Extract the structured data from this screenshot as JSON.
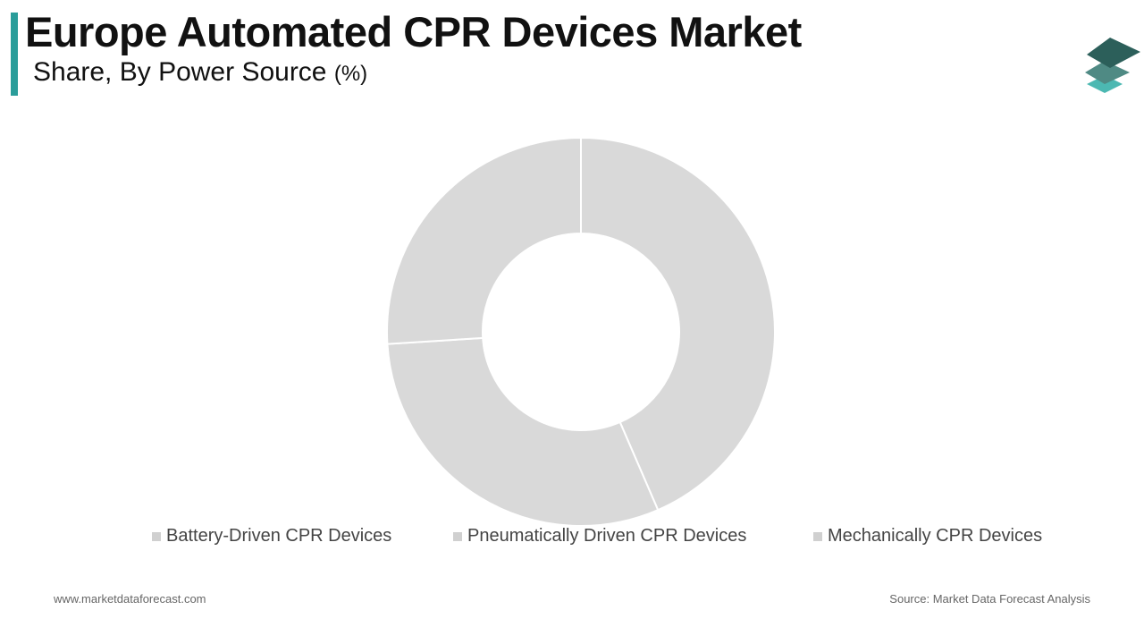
{
  "header": {
    "title": "Europe Automated CPR Devices Market",
    "subtitle": "Share, By Power Source",
    "subtitle_unit": "(%)",
    "accent_color": "#2a9d9a"
  },
  "logo": {
    "icon": "stacked-layers-logo-icon",
    "colors": [
      "#2c5f5a",
      "#4f8a84",
      "#4cb8b2"
    ]
  },
  "chart_data": {
    "type": "pie",
    "variant": "donut",
    "title": "Europe Automated CPR Devices Market",
    "subtitle": "Share, By Power Source (%)",
    "categories": [
      "Battery-Driven CPR Devices",
      "Pneumatically Driven CPR Devices",
      "Mechanically CPR Devices"
    ],
    "values": [
      43.5,
      30.5,
      26.0
    ],
    "colors": [
      "#d9d9d9",
      "#d9d9d9",
      "#d9d9d9"
    ],
    "legend_colors": [
      "#d0d0d0",
      "#d0d0d0",
      "#d0d0d0"
    ],
    "separator_color": "#ffffff",
    "legend_position": "bottom"
  },
  "footer": {
    "website": "www.marketdataforecast.com",
    "source": "Source: Market Data Forecast Analysis"
  }
}
